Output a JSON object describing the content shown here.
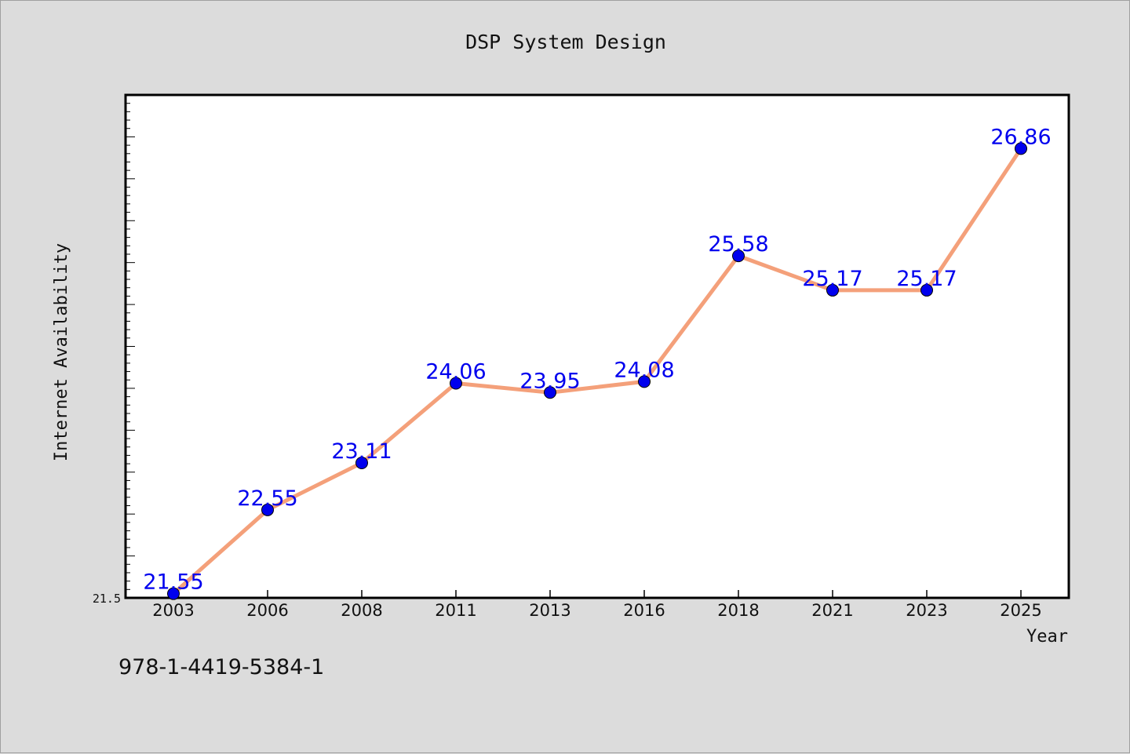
{
  "chart_data": {
    "type": "line",
    "title": "DSP System Design",
    "xlabel": "Year",
    "ylabel": "Internet Availability",
    "categories": [
      "2003",
      "2006",
      "2008",
      "2011",
      "2013",
      "2016",
      "2018",
      "2021",
      "2023",
      "2025"
    ],
    "series": [
      {
        "values": [
          21.55,
          22.55,
          23.11,
          24.06,
          23.95,
          24.08,
          25.58,
          25.17,
          25.17,
          26.86
        ],
        "data_labels": [
          "21.55",
          "22.55",
          "23.11",
          "24.06",
          "23.95",
          "24.08",
          "25.58",
          "25.17",
          "25.17",
          "26.86"
        ]
      }
    ],
    "y_tick_labels": [
      "21.5"
    ],
    "ylim": [
      21.5,
      27.5
    ],
    "grid": false,
    "line_color": "#f4a07a",
    "marker_color": "#0000ee",
    "label_color": "#0000ee"
  },
  "footer": {
    "code": "978-1-4419-5384-1"
  }
}
